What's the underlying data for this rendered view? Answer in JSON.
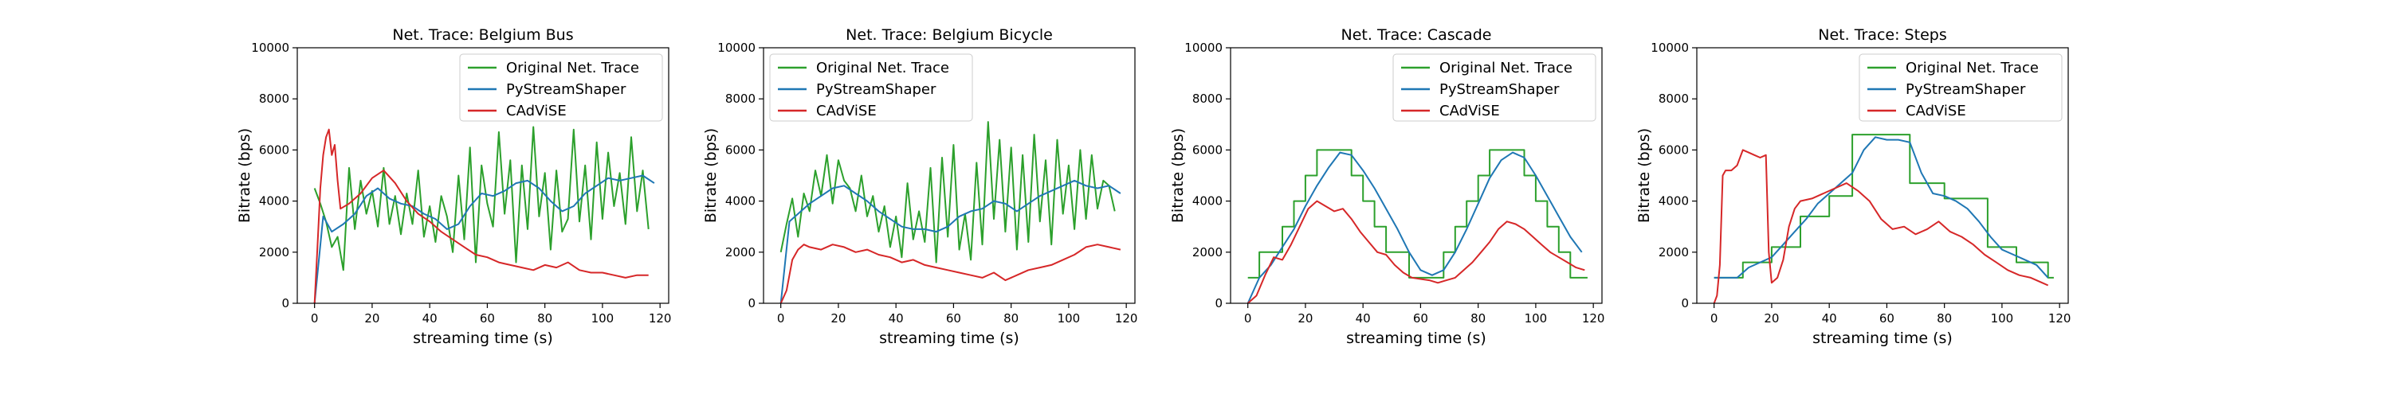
{
  "colors": {
    "original": "#2ca02c",
    "pystreamshaper": "#1f77b4",
    "cadvise": "#d62728"
  },
  "chart_data": [
    {
      "type": "line",
      "title": "Net. Trace: Belgium Bus",
      "xlabel": "streaming time (s)",
      "ylabel": "Bitrate (bps)",
      "xlim": [
        -6,
        123
      ],
      "ylim": [
        0,
        10000
      ],
      "xticks": [
        0,
        20,
        40,
        60,
        80,
        100,
        120
      ],
      "yticks": [
        0,
        2000,
        4000,
        6000,
        8000,
        10000
      ],
      "legend": "top-right",
      "grid": false,
      "series": [
        {
          "name": "Original Net. Trace",
          "color_key": "original",
          "x": [
            0,
            2,
            4,
            6,
            8,
            10,
            12,
            14,
            16,
            18,
            20,
            22,
            24,
            26,
            28,
            30,
            32,
            34,
            36,
            38,
            40,
            42,
            44,
            46,
            48,
            50,
            52,
            54,
            56,
            58,
            60,
            62,
            64,
            66,
            68,
            70,
            72,
            74,
            76,
            78,
            80,
            82,
            84,
            86,
            88,
            90,
            92,
            94,
            96,
            98,
            100,
            102,
            104,
            106,
            108,
            110,
            112,
            114,
            116
          ],
          "y": [
            4500,
            3900,
            3200,
            2200,
            2600,
            1300,
            5300,
            2900,
            4800,
            3500,
            4400,
            3000,
            5300,
            3100,
            4200,
            2700,
            4300,
            3100,
            5200,
            2600,
            3800,
            2400,
            4200,
            3400,
            2000,
            5000,
            2500,
            6100,
            1600,
            5400,
            3900,
            3000,
            6700,
            3500,
            5600,
            1600,
            5400,
            2900,
            6900,
            3400,
            5100,
            2100,
            5200,
            2800,
            3300,
            6800,
            3200,
            5400,
            2500,
            6300,
            3300,
            5900,
            3800,
            5100,
            3100,
            6500,
            3600,
            5200,
            2900
          ]
        },
        {
          "name": "PyStreamShaper",
          "color_key": "pystreamshaper",
          "x": [
            0,
            3,
            6,
            10,
            14,
            18,
            22,
            26,
            30,
            34,
            38,
            42,
            46,
            50,
            54,
            58,
            62,
            66,
            70,
            74,
            78,
            82,
            86,
            90,
            94,
            98,
            102,
            106,
            110,
            114,
            118
          ],
          "y": [
            0,
            3400,
            2800,
            3100,
            3500,
            4200,
            4500,
            4100,
            3900,
            3800,
            3500,
            3300,
            2900,
            3100,
            3800,
            4300,
            4200,
            4400,
            4700,
            4800,
            4500,
            4000,
            3600,
            3800,
            4300,
            4600,
            4900,
            4800,
            4900,
            5000,
            4700
          ]
        },
        {
          "name": "CAdViSE",
          "color_key": "cadvise",
          "x": [
            0,
            1,
            2,
            3,
            4,
            5,
            6,
            7,
            8,
            9,
            12,
            16,
            20,
            24,
            28,
            32,
            36,
            40,
            44,
            48,
            52,
            56,
            60,
            64,
            68,
            72,
            76,
            80,
            84,
            88,
            92,
            96,
            100,
            104,
            108,
            112,
            116
          ],
          "y": [
            0,
            2200,
            4500,
            5800,
            6500,
            6800,
            5800,
            6200,
            4800,
            3700,
            3900,
            4300,
            4900,
            5200,
            4700,
            4000,
            3500,
            3200,
            2800,
            2500,
            2200,
            1900,
            1800,
            1600,
            1500,
            1400,
            1300,
            1500,
            1400,
            1600,
            1300,
            1200,
            1200,
            1100,
            1000,
            1100,
            1100
          ]
        }
      ]
    },
    {
      "type": "line",
      "title": "Net. Trace: Belgium Bicycle",
      "xlabel": "streaming time (s)",
      "ylabel": "Bitrate (bps)",
      "xlim": [
        -6,
        123
      ],
      "ylim": [
        0,
        10000
      ],
      "xticks": [
        0,
        20,
        40,
        60,
        80,
        100,
        120
      ],
      "yticks": [
        0,
        2000,
        4000,
        6000,
        8000,
        10000
      ],
      "legend": "top-left",
      "grid": false,
      "series": [
        {
          "name": "Original Net. Trace",
          "color_key": "original",
          "x": [
            0,
            2,
            4,
            6,
            8,
            10,
            12,
            14,
            16,
            18,
            20,
            22,
            24,
            26,
            28,
            30,
            32,
            34,
            36,
            38,
            40,
            42,
            44,
            46,
            48,
            50,
            52,
            54,
            56,
            58,
            60,
            62,
            64,
            66,
            68,
            70,
            72,
            74,
            76,
            78,
            80,
            82,
            84,
            86,
            88,
            90,
            92,
            94,
            96,
            98,
            100,
            102,
            104,
            106,
            108,
            110,
            112,
            114,
            116
          ],
          "y": [
            2000,
            3100,
            4100,
            2600,
            4300,
            3600,
            5200,
            4200,
            5800,
            3900,
            5600,
            4800,
            4500,
            3600,
            5000,
            3400,
            4200,
            2800,
            3800,
            2200,
            3400,
            1800,
            4700,
            2500,
            3600,
            2400,
            5300,
            1600,
            5700,
            2600,
            6200,
            2100,
            3500,
            1700,
            5500,
            2300,
            7100,
            3300,
            6400,
            2800,
            6100,
            2100,
            5800,
            2400,
            6600,
            3200,
            5600,
            2300,
            6400,
            3500,
            5400,
            2900,
            6000,
            3300,
            5800,
            3700,
            4800,
            4600,
            3600
          ]
        },
        {
          "name": "PyStreamShaper",
          "color_key": "pystreamshaper",
          "x": [
            0,
            3,
            6,
            10,
            14,
            18,
            22,
            26,
            30,
            34,
            38,
            42,
            46,
            50,
            54,
            58,
            62,
            66,
            70,
            74,
            78,
            82,
            86,
            90,
            94,
            98,
            102,
            106,
            110,
            114,
            118
          ],
          "y": [
            0,
            3200,
            3500,
            3900,
            4200,
            4500,
            4600,
            4300,
            4000,
            3600,
            3300,
            3000,
            2900,
            2900,
            2800,
            3000,
            3400,
            3600,
            3700,
            4000,
            3900,
            3600,
            3900,
            4200,
            4400,
            4600,
            4800,
            4600,
            4500,
            4600,
            4300
          ]
        },
        {
          "name": "CAdViSE",
          "color_key": "cadvise",
          "x": [
            0,
            2,
            4,
            6,
            8,
            10,
            14,
            18,
            22,
            26,
            30,
            34,
            38,
            42,
            46,
            50,
            54,
            58,
            62,
            66,
            70,
            74,
            78,
            82,
            86,
            90,
            94,
            98,
            102,
            106,
            110,
            114,
            118
          ],
          "y": [
            0,
            500,
            1700,
            2100,
            2300,
            2200,
            2100,
            2300,
            2200,
            2000,
            2100,
            1900,
            1800,
            1600,
            1700,
            1500,
            1400,
            1300,
            1200,
            1100,
            1000,
            1200,
            900,
            1100,
            1300,
            1400,
            1500,
            1700,
            1900,
            2200,
            2300,
            2200,
            2100
          ]
        }
      ]
    },
    {
      "type": "line",
      "title": "Net. Trace: Cascade",
      "xlabel": "streaming time (s)",
      "ylabel": "Bitrate (bps)",
      "xlim": [
        -6,
        123
      ],
      "ylim": [
        0,
        10000
      ],
      "xticks": [
        0,
        20,
        40,
        60,
        80,
        100,
        120
      ],
      "yticks": [
        0,
        2000,
        4000,
        6000,
        8000,
        10000
      ],
      "legend": "top-right",
      "grid": false,
      "series": [
        {
          "name": "Original Net. Trace",
          "color_key": "original",
          "step": true,
          "x": [
            0,
            4,
            8,
            12,
            16,
            20,
            24,
            28,
            32,
            36,
            40,
            44,
            48,
            52,
            56,
            60,
            64,
            68,
            72,
            76,
            80,
            84,
            88,
            92,
            96,
            100,
            104,
            108,
            112,
            116
          ],
          "y": [
            1000,
            2000,
            2000,
            3000,
            4000,
            5000,
            6000,
            6000,
            6000,
            5000,
            4000,
            3000,
            2000,
            2000,
            1000,
            1000,
            1000,
            2000,
            3000,
            4000,
            5000,
            6000,
            6000,
            6000,
            5000,
            4000,
            3000,
            2000,
            1000,
            1000
          ]
        },
        {
          "name": "PyStreamShaper",
          "color_key": "pystreamshaper",
          "x": [
            0,
            4,
            8,
            12,
            16,
            20,
            24,
            28,
            32,
            36,
            40,
            44,
            48,
            52,
            56,
            60,
            64,
            68,
            72,
            76,
            80,
            84,
            88,
            92,
            96,
            100,
            104,
            108,
            112,
            116
          ],
          "y": [
            0,
            1000,
            1500,
            2200,
            2900,
            3800,
            4600,
            5300,
            5900,
            5800,
            5200,
            4500,
            3700,
            2900,
            2000,
            1300,
            1100,
            1300,
            2000,
            2900,
            3900,
            4900,
            5600,
            5900,
            5700,
            5000,
            4200,
            3400,
            2600,
            2000
          ]
        },
        {
          "name": "CAdViSE",
          "color_key": "cadvise",
          "x": [
            0,
            3,
            6,
            9,
            12,
            15,
            18,
            21,
            24,
            27,
            30,
            33,
            36,
            39,
            42,
            45,
            48,
            51,
            54,
            57,
            60,
            63,
            66,
            69,
            72,
            75,
            78,
            81,
            84,
            87,
            90,
            93,
            96,
            99,
            102,
            105,
            108,
            111,
            114,
            117
          ],
          "y": [
            0,
            300,
            1100,
            1800,
            1700,
            2300,
            3000,
            3700,
            4000,
            3800,
            3600,
            3700,
            3300,
            2800,
            2400,
            2000,
            1900,
            1500,
            1200,
            1000,
            950,
            900,
            800,
            900,
            1000,
            1300,
            1600,
            2000,
            2400,
            2900,
            3200,
            3100,
            2900,
            2600,
            2300,
            2000,
            1800,
            1600,
            1400,
            1300
          ]
        }
      ]
    },
    {
      "type": "line",
      "title": "Net. Trace: Steps",
      "xlabel": "streaming time (s)",
      "ylabel": "Bitrate (bps)",
      "xlim": [
        -6,
        123
      ],
      "ylim": [
        0,
        10000
      ],
      "xticks": [
        0,
        20,
        40,
        60,
        80,
        100,
        120
      ],
      "yticks": [
        0,
        2000,
        4000,
        6000,
        8000,
        10000
      ],
      "legend": "top-right",
      "grid": false,
      "series": [
        {
          "name": "Original Net. Trace",
          "color_key": "original",
          "step": true,
          "x": [
            0,
            10,
            20,
            30,
            40,
            48,
            68,
            80,
            95,
            105,
            116
          ],
          "y": [
            1000,
            1600,
            2200,
            3400,
            4200,
            6600,
            4700,
            4100,
            2200,
            1600,
            1000
          ]
        },
        {
          "name": "PyStreamShaper",
          "color_key": "pystreamshaper",
          "x": [
            0,
            4,
            8,
            12,
            16,
            20,
            24,
            28,
            32,
            36,
            40,
            44,
            48,
            52,
            56,
            60,
            64,
            68,
            72,
            76,
            80,
            84,
            88,
            92,
            96,
            100,
            104,
            108,
            112,
            116
          ],
          "y": [
            1000,
            1000,
            1000,
            1400,
            1600,
            1800,
            2300,
            2800,
            3300,
            3900,
            4300,
            4700,
            5100,
            6000,
            6500,
            6400,
            6400,
            6300,
            5100,
            4300,
            4200,
            4000,
            3700,
            3200,
            2600,
            2100,
            1900,
            1700,
            1500,
            1000
          ]
        },
        {
          "name": "CAdViSE",
          "color_key": "cadvise",
          "x": [
            0,
            1,
            2,
            3,
            4,
            6,
            8,
            10,
            12,
            14,
            16,
            18,
            19,
            20,
            22,
            24,
            26,
            28,
            30,
            34,
            38,
            42,
            46,
            50,
            54,
            58,
            62,
            66,
            70,
            74,
            78,
            82,
            86,
            90,
            94,
            98,
            102,
            106,
            110,
            114,
            116
          ],
          "y": [
            0,
            300,
            1500,
            5000,
            5200,
            5200,
            5400,
            6000,
            5900,
            5800,
            5700,
            5800,
            2000,
            800,
            1000,
            1700,
            3000,
            3700,
            4000,
            4100,
            4300,
            4500,
            4700,
            4400,
            4000,
            3300,
            2900,
            3000,
            2700,
            2900,
            3200,
            2800,
            2600,
            2300,
            1900,
            1600,
            1300,
            1100,
            1000,
            800,
            700
          ]
        }
      ]
    }
  ]
}
